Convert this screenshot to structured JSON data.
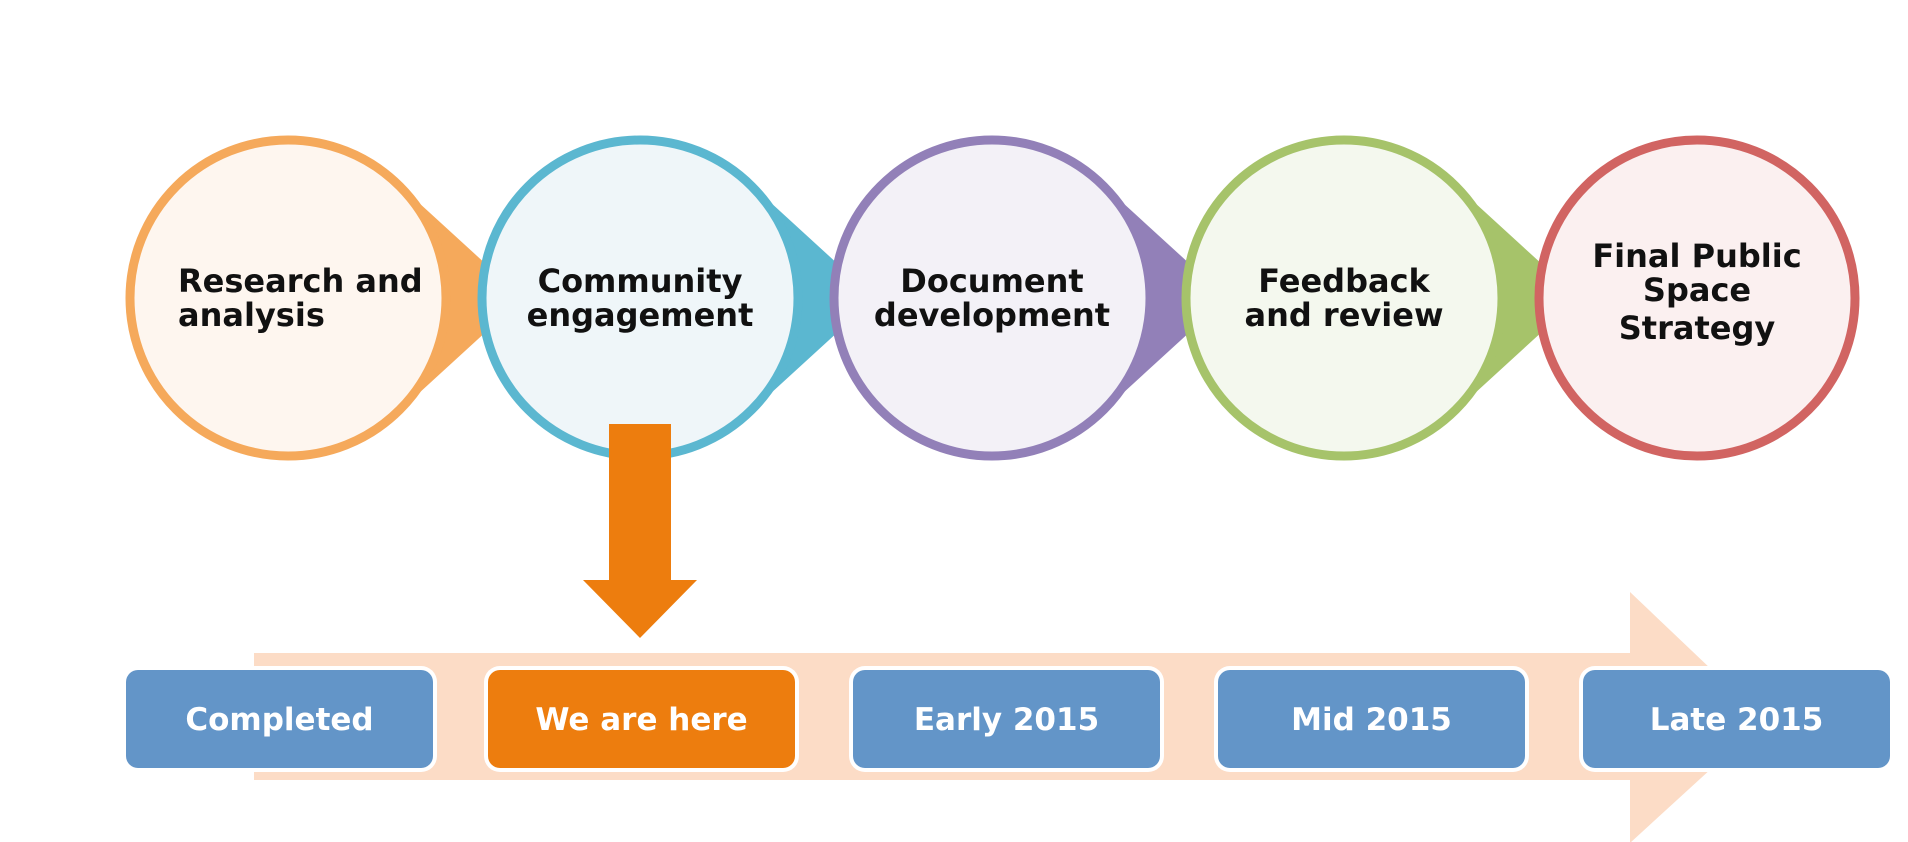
{
  "stages": [
    {
      "label_lines": [
        "Research and",
        "analysis"
      ],
      "ring_color": "#F5A95B",
      "fill_color": "#FEF6EF",
      "align": "left"
    },
    {
      "label_lines": [
        "Community",
        "engagement"
      ],
      "ring_color": "#5BB7D0",
      "fill_color": "#EFF6F9",
      "align": "center"
    },
    {
      "label_lines": [
        "Document",
        "development"
      ],
      "ring_color": "#9280B8",
      "fill_color": "#F3F1F7",
      "align": "center"
    },
    {
      "label_lines": [
        "Feedback",
        "and review"
      ],
      "ring_color": "#A6C36A",
      "fill_color": "#F4F8EE",
      "align": "center"
    },
    {
      "label_lines": [
        "Final  Public",
        "Space",
        "Strategy"
      ],
      "ring_color": "#D16462",
      "fill_color": "#FBF0F0",
      "align": "center"
    }
  ],
  "timeline": {
    "band_color": "#FCDCC6",
    "pointer_color": "#ED7D0E",
    "current_index": 1,
    "boxes": [
      {
        "label": "Completed",
        "color": "#6395C8"
      },
      {
        "label": "We are here",
        "color": "#ED7D0E"
      },
      {
        "label": "Early 2015",
        "color": "#6395C8"
      },
      {
        "label": "Mid 2015",
        "color": "#6395C8"
      },
      {
        "label": "Late 2015",
        "color": "#6395C8"
      }
    ]
  }
}
